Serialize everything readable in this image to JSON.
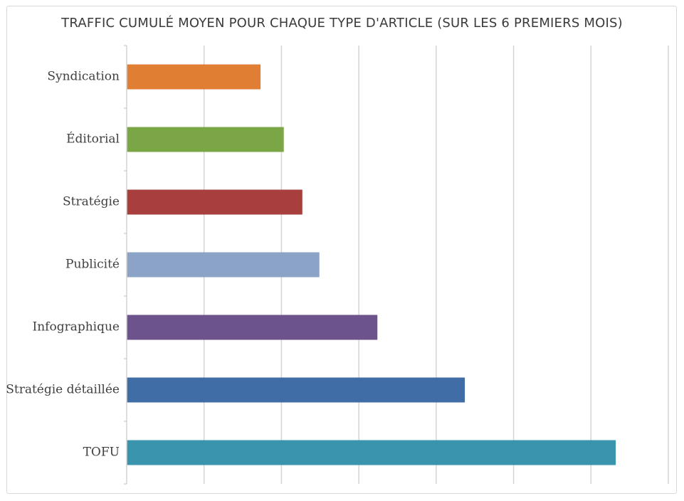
{
  "chart_data": {
    "type": "bar",
    "orientation": "horizontal",
    "title": "TRAFFIC CUMULÉ MOYEN POUR CHAQUE TYPE D'ARTICLE (SUR LES 6 PREMIERS MOIS)",
    "categories": [
      "Syndication",
      "Éditorial",
      "Stratégie",
      "Publicité",
      "Infographique",
      "Stratégie détaillée",
      "TOFU"
    ],
    "values": [
      1.73,
      2.03,
      2.27,
      2.49,
      3.24,
      4.37,
      6.32
    ],
    "colors": [
      "#E07E34",
      "#7BA645",
      "#A83E3E",
      "#8BA3C7",
      "#6C538E",
      "#416DA6",
      "#3A94AE"
    ],
    "xlim": [
      0,
      7
    ],
    "grid": true,
    "legend": "none",
    "xaxis_tick_labels_shown": false
  }
}
